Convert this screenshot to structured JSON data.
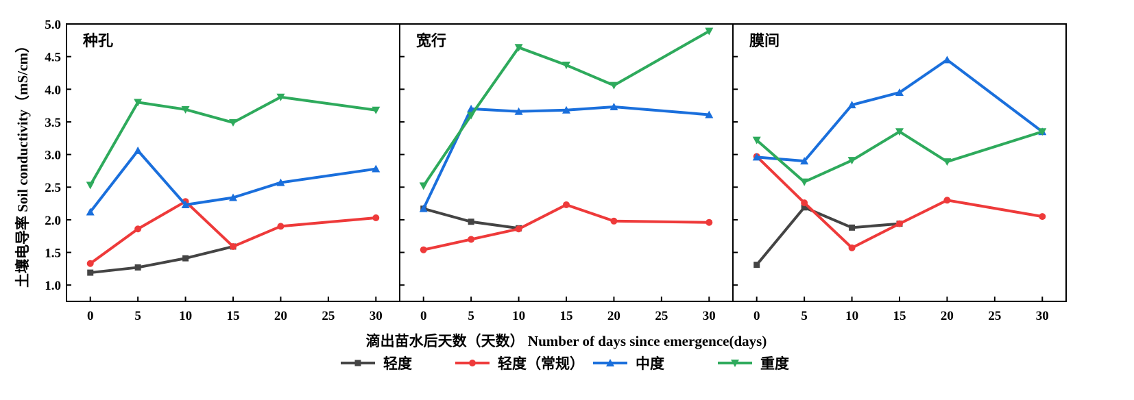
{
  "chart_data": {
    "type": "line",
    "ylabel": "土壤电导率  Soil conductivity（mS/cm）",
    "xlabel": "滴出苗水后天数（天数）  Number of days since emergence(days)",
    "ylim": [
      0.75,
      5.0
    ],
    "xlim": [
      -2.5,
      32.5
    ],
    "yticks": [
      "1.0",
      "1.5",
      "2.0",
      "2.5",
      "3.0",
      "3.5",
      "4.0",
      "4.5",
      "5.0"
    ],
    "xticks": [
      "0",
      "5",
      "10",
      "15",
      "20",
      "25",
      "30"
    ],
    "legend_position": "bottom-center",
    "colors": {
      "轻度": "#444444",
      "轻度（常规）": "#ee3a3a",
      "中度": "#1a6fdc",
      "重度": "#2eaa5c"
    },
    "legend": [
      "轻度",
      "轻度（常规）",
      "中度",
      "重度"
    ],
    "panels": [
      {
        "title": "种孔",
        "series": [
          {
            "name": "轻度",
            "marker": "square",
            "x": [
              0,
              5,
              10,
              15
            ],
            "values": [
              1.19,
              1.27,
              1.41,
              1.59
            ]
          },
          {
            "name": "轻度（常规）",
            "marker": "circle",
            "x": [
              0,
              5,
              10,
              15,
              20,
              30
            ],
            "values": [
              1.33,
              1.86,
              2.28,
              1.59,
              1.9,
              2.03
            ]
          },
          {
            "name": "中度",
            "marker": "triangle-up",
            "x": [
              0,
              5,
              10,
              15,
              20,
              30
            ],
            "values": [
              2.12,
              3.06,
              2.23,
              2.34,
              2.57,
              2.78
            ]
          },
          {
            "name": "重度",
            "marker": "triangle-down",
            "x": [
              0,
              5,
              10,
              15,
              20,
              30
            ],
            "values": [
              2.53,
              3.8,
              3.69,
              3.49,
              3.88,
              3.68
            ]
          }
        ]
      },
      {
        "title": "宽行",
        "series": [
          {
            "name": "轻度",
            "marker": "square",
            "x": [
              0,
              5,
              10
            ],
            "values": [
              2.17,
              1.97,
              1.87
            ]
          },
          {
            "name": "轻度（常规）",
            "marker": "circle",
            "x": [
              0,
              5,
              10,
              15,
              20,
              30
            ],
            "values": [
              1.54,
              1.7,
              1.86,
              2.23,
              1.98,
              1.96
            ]
          },
          {
            "name": "中度",
            "marker": "triangle-up",
            "x": [
              0,
              5,
              10,
              15,
              20,
              30
            ],
            "values": [
              2.17,
              3.7,
              3.66,
              3.68,
              3.73,
              3.61
            ]
          },
          {
            "name": "重度",
            "marker": "triangle-down",
            "x": [
              0,
              5,
              10,
              15,
              20,
              30
            ],
            "values": [
              2.52,
              3.6,
              4.64,
              4.37,
              4.06,
              4.89
            ]
          }
        ]
      },
      {
        "title": "膜间",
        "series": [
          {
            "name": "轻度",
            "marker": "square",
            "x": [
              0,
              5,
              10,
              15
            ],
            "values": [
              1.31,
              2.19,
              1.88,
              1.94
            ]
          },
          {
            "name": "轻度（常规）",
            "marker": "circle",
            "x": [
              0,
              5,
              10,
              15,
              20,
              30
            ],
            "values": [
              2.97,
              2.26,
              1.57,
              1.94,
              2.3,
              2.05
            ]
          },
          {
            "name": "中度",
            "marker": "triangle-up",
            "x": [
              0,
              5,
              10,
              15,
              20,
              30
            ],
            "values": [
              2.96,
              2.9,
              3.76,
              3.95,
              4.45,
              3.35
            ]
          },
          {
            "name": "重度",
            "marker": "triangle-down",
            "x": [
              0,
              5,
              10,
              15,
              20,
              30
            ],
            "values": [
              3.22,
              2.58,
              2.91,
              3.35,
              2.89,
              3.35
            ]
          }
        ]
      }
    ]
  }
}
